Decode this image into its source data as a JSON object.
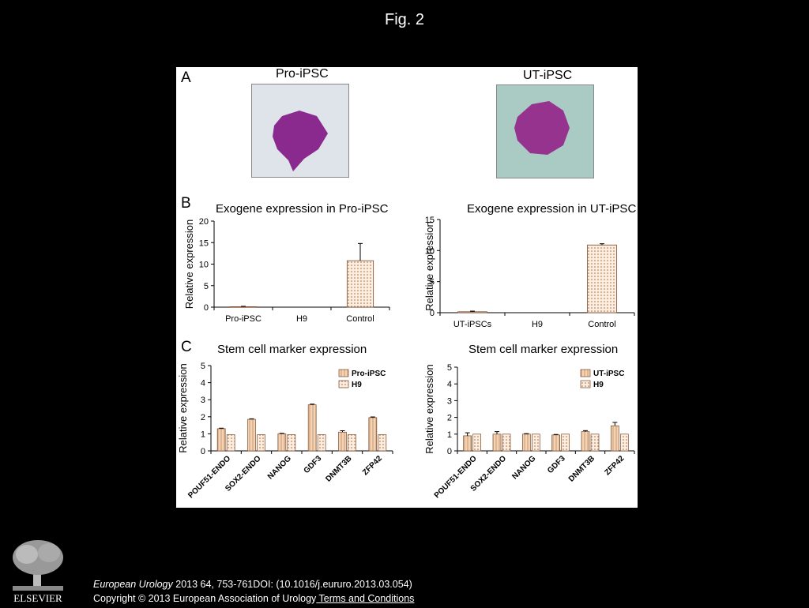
{
  "figure": {
    "title": "Fig. 2",
    "panel_labels": {
      "a": "A",
      "b": "B",
      "c": "C"
    },
    "micrographs": [
      {
        "label": "Pro-iPSC",
        "colors": {
          "background": "#dfe3ea",
          "colony": "#8a2a8e"
        }
      },
      {
        "label": "UT-iPSC",
        "colors": {
          "background": "#a9cbc3",
          "colony": "#96338f"
        }
      }
    ]
  },
  "colors": {
    "bar_fill": "#f2d3b5",
    "bar_stroke": "#7a4a2a",
    "axis": "#000000"
  },
  "chart_data": [
    {
      "type": "bar",
      "title": "Exogene expression in Pro-iPSC",
      "ylabel": "Relative expression",
      "xlabel": "",
      "categories": [
        "Pro-iPSC",
        "H9",
        "Control"
      ],
      "values": [
        0.1,
        0,
        10.8
      ],
      "errors": [
        0.1,
        0,
        4.0
      ],
      "ylim": [
        0,
        20
      ],
      "yticks": [
        0,
        5,
        10,
        15,
        20
      ],
      "grid": false
    },
    {
      "type": "bar",
      "title": "Exogene expression in UT-iPSC",
      "ylabel": "Relative expression",
      "xlabel": "",
      "categories": [
        "UT-iPSCs",
        "H9",
        "Control"
      ],
      "values": [
        0.15,
        0,
        10.9
      ],
      "errors": [
        0.1,
        0,
        0.2
      ],
      "ylim": [
        0,
        15
      ],
      "yticks": [
        0,
        5,
        10,
        15
      ],
      "grid": false
    },
    {
      "type": "bar",
      "title": "Stem cell marker expression",
      "ylabel": "Relative expression",
      "xlabel": "",
      "categories": [
        "POUF51-ENDO",
        "SOX2-ENDO",
        "NANOG",
        "GDF3",
        "DNMT3B",
        "ZFP42"
      ],
      "series": [
        {
          "name": "Pro-iPSC",
          "values": [
            1.3,
            1.85,
            1.0,
            2.7,
            1.1,
            1.95
          ],
          "errors": [
            0.03,
            0.03,
            0.03,
            0.04,
            0.08,
            0.04
          ]
        },
        {
          "name": "H9",
          "values": [
            0.95,
            0.95,
            0.95,
            0.95,
            0.95,
            0.95
          ],
          "errors": [
            0,
            0,
            0,
            0,
            0,
            0
          ]
        }
      ],
      "ylim": [
        0,
        5
      ],
      "yticks": [
        0,
        1,
        2,
        3,
        4,
        5
      ],
      "legend": "top-right",
      "grid": false
    },
    {
      "type": "bar",
      "title": "Stem cell marker expression",
      "ylabel": "Relative expression",
      "xlabel": "",
      "categories": [
        "POUF51-ENDO",
        "SOX2-ENDO",
        "NANOG",
        "GDF3",
        "DNMT3B",
        "ZFP42"
      ],
      "series": [
        {
          "name": "UT-iPSC",
          "values": [
            0.9,
            1.0,
            1.0,
            0.95,
            1.15,
            1.5
          ],
          "errors": [
            0.18,
            0.15,
            0.03,
            0.03,
            0.06,
            0.2
          ]
        },
        {
          "name": "H9",
          "values": [
            1.0,
            1.0,
            1.0,
            1.0,
            1.0,
            1.0
          ],
          "errors": [
            0,
            0,
            0,
            0,
            0,
            0
          ]
        }
      ],
      "ylim": [
        0,
        5
      ],
      "yticks": [
        0,
        1,
        2,
        3,
        4,
        5
      ],
      "legend": "top-right",
      "grid": false
    }
  ],
  "footer": {
    "logo_text": "ELSEVIER",
    "journal": "European Urology",
    "citation": " 2013 64, 753-761DOI: (10.1016/j.eururo.2013.03.054) ",
    "copyright": "Copyright © 2013 European Association of Urology",
    "terms_link": " Terms and Conditions"
  }
}
